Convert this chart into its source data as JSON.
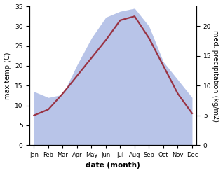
{
  "months": [
    "Jan",
    "Feb",
    "Mar",
    "Apr",
    "May",
    "Jun",
    "Jul",
    "Aug",
    "Sep",
    "Oct",
    "Nov",
    "Dec"
  ],
  "temp": [
    7.5,
    9.0,
    13.0,
    17.5,
    22.0,
    26.5,
    31.5,
    32.5,
    27.0,
    20.0,
    13.0,
    8.0
  ],
  "precip": [
    9.0,
    8.0,
    8.5,
    13.5,
    18.0,
    21.5,
    22.5,
    23.0,
    20.0,
    14.0,
    11.0,
    8.0
  ],
  "temp_color": "#993344",
  "precip_fill_color": "#b8c4e8",
  "ylim_left": [
    0,
    35
  ],
  "ylim_right": [
    0,
    23.33
  ],
  "ylabel_left": "max temp (C)",
  "ylabel_right": "med. precipitation (kg/m2)",
  "xlabel": "date (month)",
  "right_ticks": [
    0,
    5,
    10,
    15,
    20
  ],
  "left_ticks": [
    0,
    5,
    10,
    15,
    20,
    25,
    30,
    35
  ],
  "fig_width": 3.18,
  "fig_height": 2.47,
  "dpi": 100
}
